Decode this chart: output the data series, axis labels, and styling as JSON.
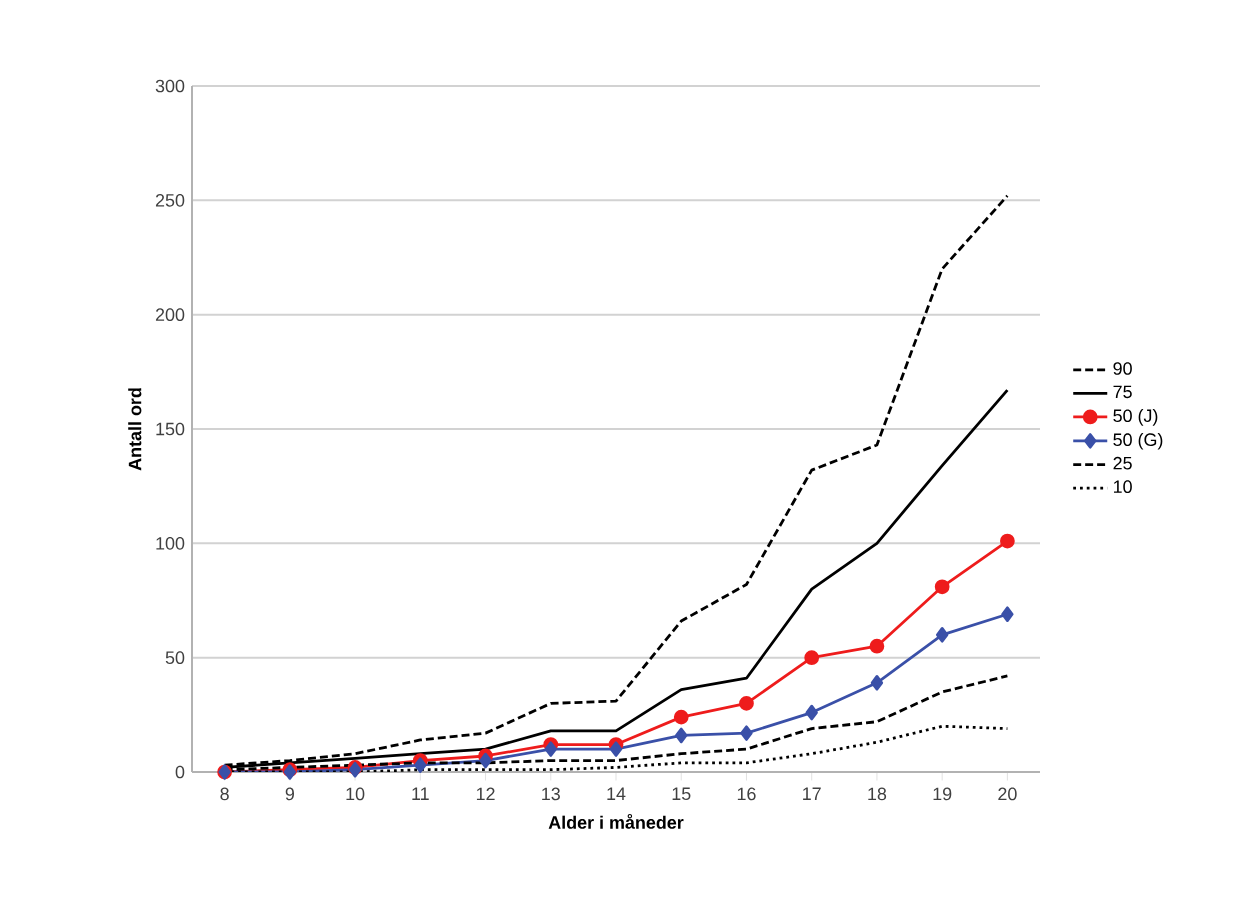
{
  "chart_data": {
    "type": "line",
    "xlabel": "Alder i måneder",
    "ylabel": "Antall ord",
    "x": [
      8,
      9,
      10,
      11,
      12,
      13,
      14,
      15,
      16,
      17,
      18,
      19,
      20
    ],
    "xlim": [
      7.5,
      20.5
    ],
    "xticks": [
      8,
      9,
      10,
      11,
      12,
      13,
      14,
      15,
      16,
      17,
      18,
      19,
      20
    ],
    "ylim": [
      0,
      300
    ],
    "yticks": [
      0,
      50,
      100,
      150,
      200,
      250,
      300
    ],
    "grid": "y",
    "legend": "right",
    "series": [
      {
        "name": "90",
        "color": "#000000",
        "line_style": "dashed",
        "marker": "none",
        "values": [
          3,
          5,
          8,
          14,
          17,
          30,
          31,
          66,
          82,
          132,
          143,
          220,
          252
        ]
      },
      {
        "name": "75",
        "color": "#000000",
        "line_style": "solid",
        "marker": "none",
        "values": [
          2,
          4,
          6,
          8,
          10,
          18,
          18,
          36,
          41,
          80,
          100,
          134,
          167
        ]
      },
      {
        "name": "50 (J)",
        "color": "#ee1c1c",
        "line_style": "solid",
        "marker": "circle",
        "values": [
          0,
          1,
          2,
          5,
          7,
          12,
          12,
          24,
          30,
          50,
          55,
          81,
          101
        ]
      },
      {
        "name": "50 (G)",
        "color": "#3a50a8",
        "line_style": "solid",
        "marker": "diamond",
        "values": [
          0,
          0,
          1,
          3,
          5,
          10,
          10,
          16,
          17,
          26,
          39,
          60,
          69
        ]
      },
      {
        "name": "25",
        "color": "#000000",
        "line_style": "dashed",
        "marker": "none",
        "values": [
          1,
          2,
          3,
          4,
          4,
          5,
          5,
          8,
          10,
          19,
          22,
          35,
          42
        ]
      },
      {
        "name": "10",
        "color": "#000000",
        "line_style": "dotted",
        "marker": "none",
        "values": [
          0,
          0,
          0,
          1,
          1,
          1,
          2,
          4,
          4,
          8,
          13,
          20,
          19
        ]
      }
    ]
  }
}
